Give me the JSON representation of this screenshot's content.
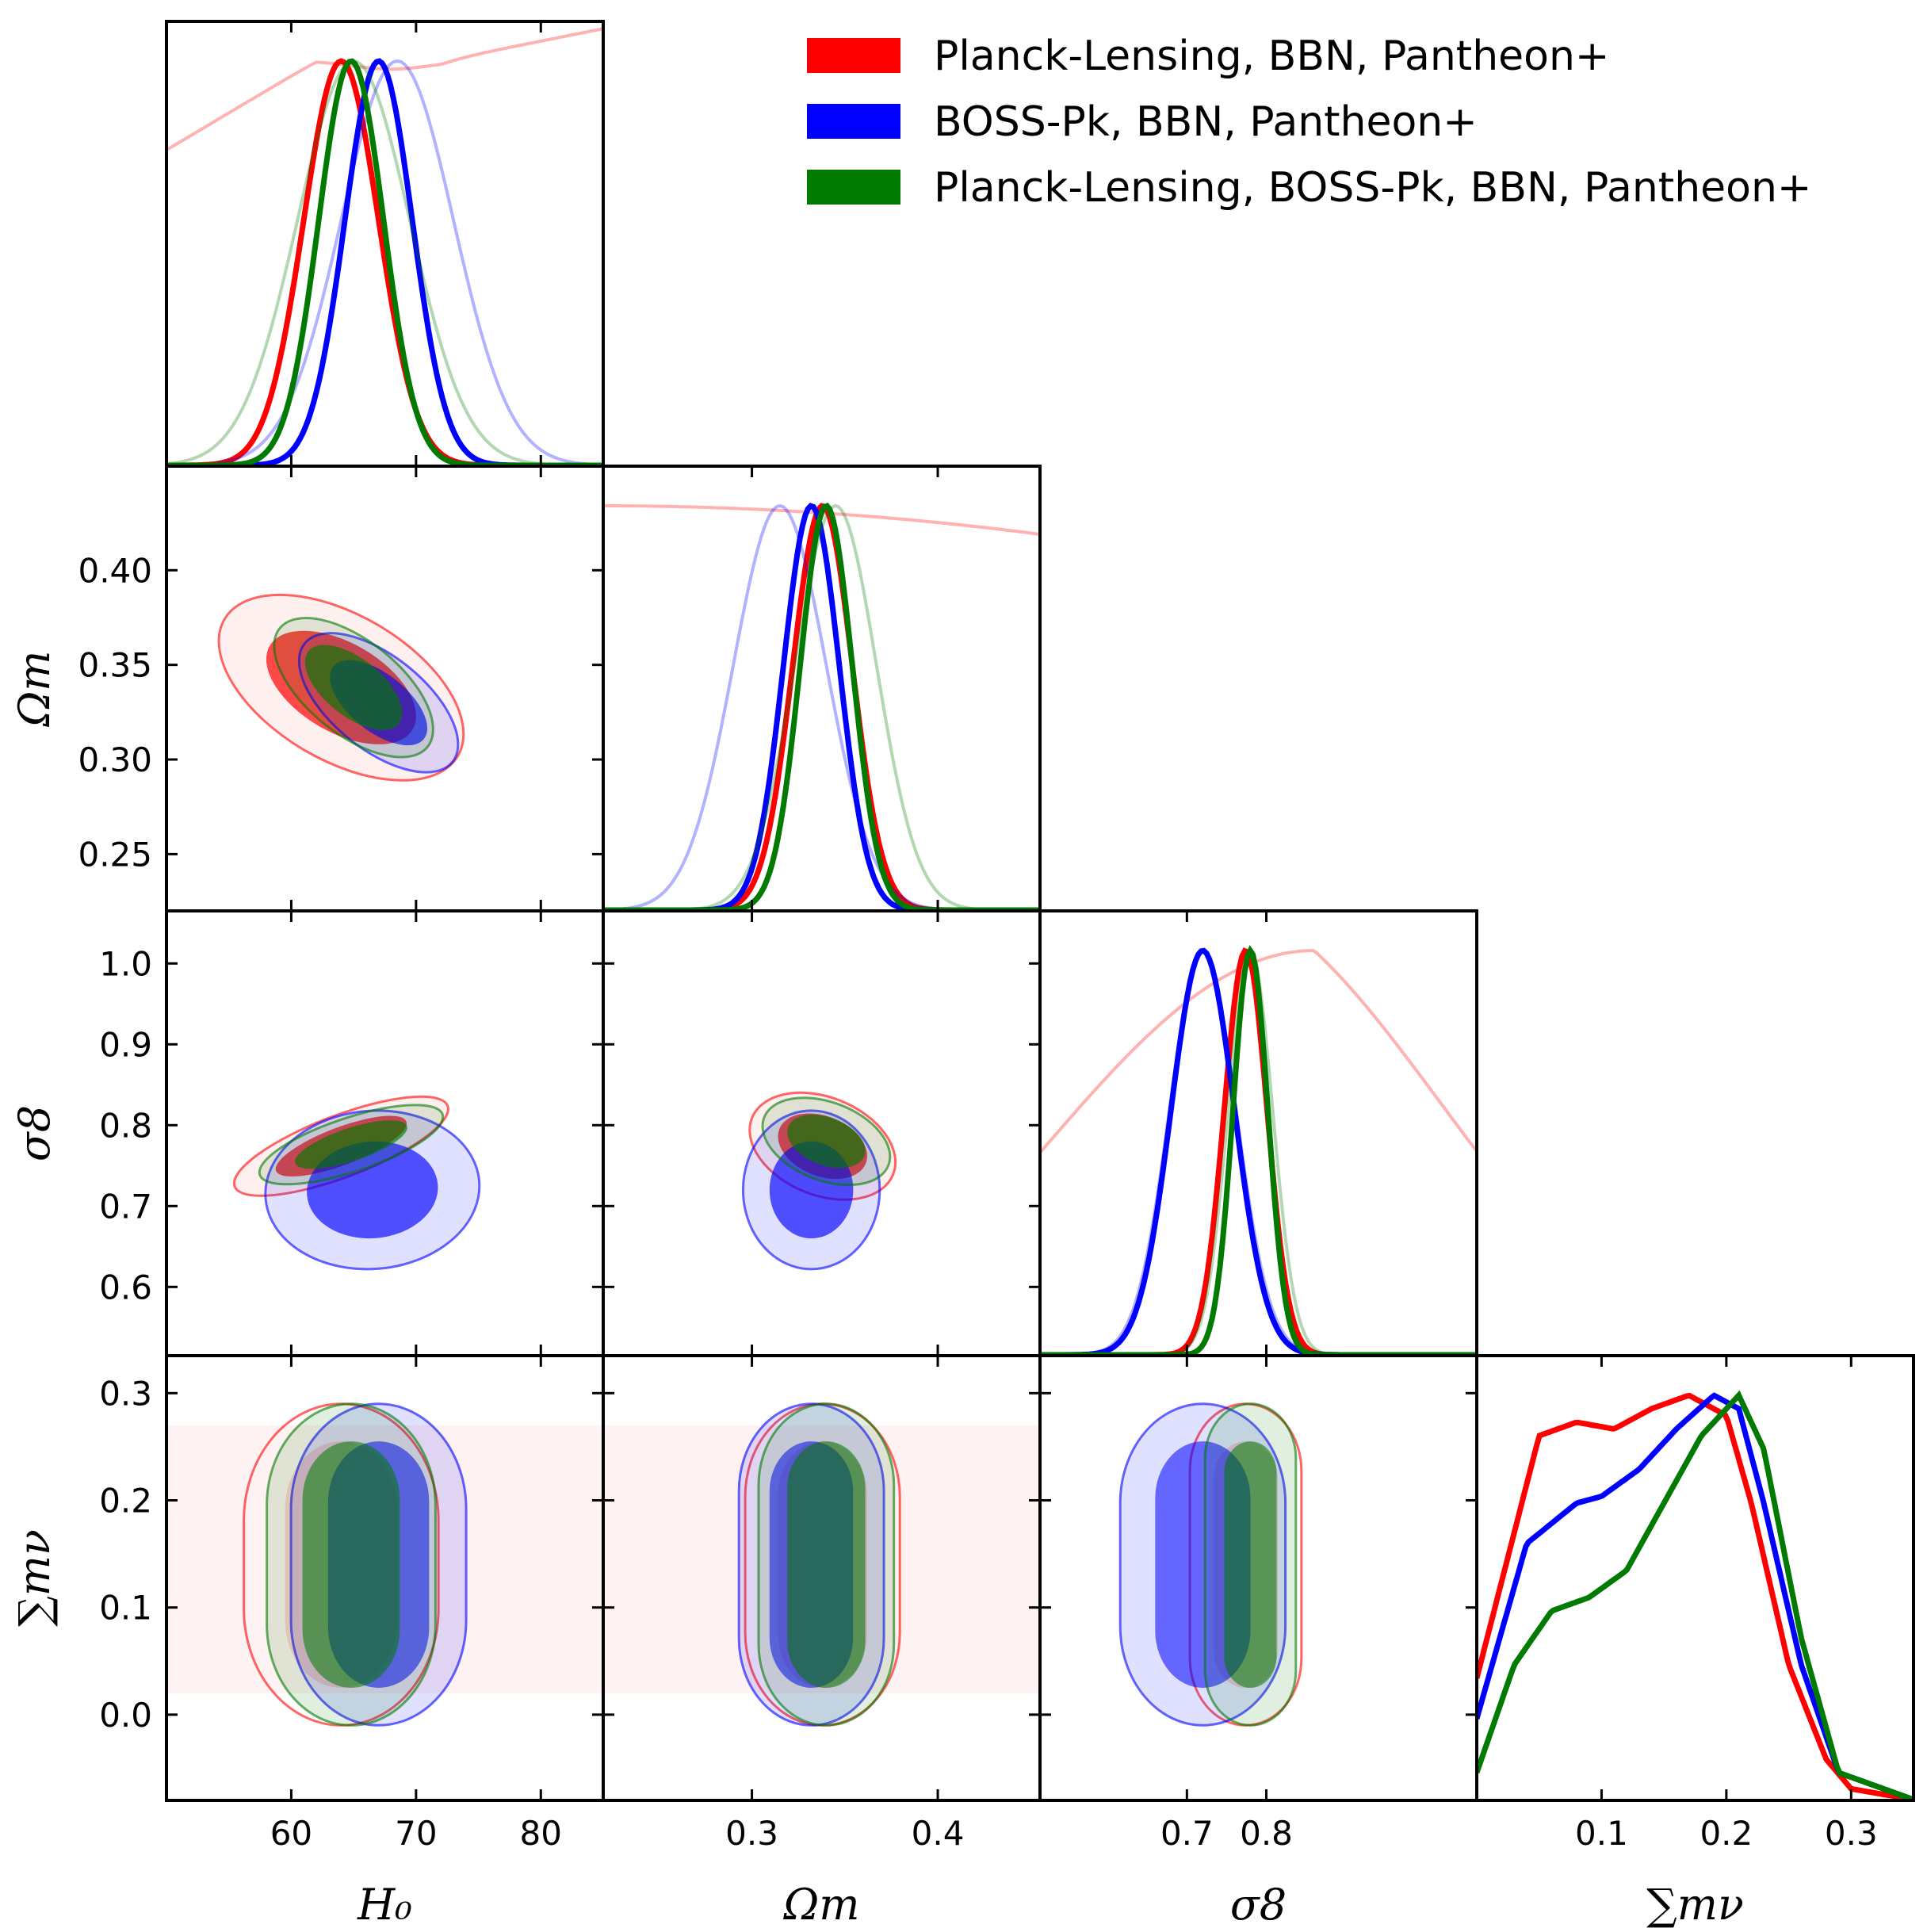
{
  "colors": {
    "red": "#ff0000",
    "blue": "#0000ff",
    "green": "#007a00",
    "frame": "#000000"
  },
  "legend": [
    {
      "label": "Planck-Lensing, BBN, Pantheon+",
      "color": "#ff0000"
    },
    {
      "label": "BOSS-Pk, BBN, Pantheon+",
      "color": "#0000ff"
    },
    {
      "label": "Planck-Lensing, BOSS-Pk, BBN, Pantheon+",
      "color": "#007a00"
    }
  ],
  "parameters": [
    {
      "key": "H0",
      "label": "H₀",
      "range": [
        50,
        85
      ],
      "ticks": [
        60,
        70,
        80
      ],
      "tick_labels": [
        "60",
        "70",
        "80"
      ]
    },
    {
      "key": "Om",
      "label": "Ωm",
      "range": [
        0.22,
        0.455
      ],
      "ticks": [
        0.25,
        0.3,
        0.35,
        0.4
      ],
      "tick_labels": [
        "0.25",
        "0.30",
        "0.35",
        "0.40"
      ],
      "x_ticks": [
        0.3,
        0.4
      ],
      "x_tick_labels": [
        "0.3",
        "0.4"
      ]
    },
    {
      "key": "s8",
      "label": "σ8",
      "range": [
        0.515,
        1.065
      ],
      "ticks": [
        0.6,
        0.7,
        0.8,
        0.9,
        1.0
      ],
      "tick_labels": [
        "0.6",
        "0.7",
        "0.8",
        "0.9",
        "1.0"
      ],
      "x_ticks": [
        0.7,
        0.8
      ],
      "x_tick_labels": [
        "0.7",
        "0.8"
      ]
    },
    {
      "key": "mnu",
      "label": "∑mν",
      "range": [
        0.0,
        0.35
      ],
      "y_range": [
        -0.08,
        0.335
      ],
      "ticks": [
        0.0,
        0.1,
        0.2,
        0.3
      ],
      "tick_labels": [
        "0.0",
        "0.1",
        "0.2",
        "0.3"
      ],
      "x_ticks": [
        0.1,
        0.2,
        0.3
      ],
      "x_tick_labels": [
        "0.1",
        "0.2",
        "0.3"
      ]
    }
  ],
  "chart_data": {
    "type": "triangle",
    "series": [
      {
        "name": "Planck-Lensing, BBN, Pantheon+",
        "color": "#ff0000",
        "marginals": {
          "H0": {
            "strong": {
              "mean": 64.0,
              "sd": 3.0
            },
            "weak": "flat-rising"
          },
          "Om": {
            "strong": {
              "mean": 0.338,
              "sd": 0.016
            },
            "weak": "decreasing"
          },
          "s8": {
            "strong": {
              "mean": 0.774,
              "sd": 0.027
            },
            "weak": "rising-peak-0.86"
          },
          "mnu": [
            [
              0.0,
              0.09
            ],
            [
              0.05,
              0.27
            ],
            [
              0.08,
              0.28
            ],
            [
              0.11,
              0.275
            ],
            [
              0.14,
              0.29
            ],
            [
              0.17,
              0.3
            ],
            [
              0.2,
              0.285
            ],
            [
              0.22,
              0.22
            ],
            [
              0.25,
              0.1
            ],
            [
              0.28,
              0.03
            ],
            [
              0.3,
              0.008
            ],
            [
              0.35,
              0.0
            ]
          ]
        },
        "contours": {
          "H0-Om": {
            "center": [
              64.0,
              0.338
            ],
            "sd": [
              4.0,
              0.02
            ],
            "rho": -0.5
          },
          "H0-s8": {
            "center": [
              64.0,
              0.774
            ],
            "sd": [
              3.5,
              0.025
            ],
            "rho": 0.75
          },
          "Om-s8": {
            "center": [
              0.338,
              0.774
            ],
            "sd": [
              0.016,
              0.027
            ],
            "rho": -0.3
          }
        }
      },
      {
        "name": "BOSS-Pk, BBN, Pantheon+",
        "color": "#0000ff",
        "marginals": {
          "H0": {
            "strong": {
              "mean": 67.0,
              "sd": 2.7
            },
            "weak": {
              "mean": 68.5,
              "sd": 4.5
            }
          },
          "Om": {
            "strong": {
              "mean": 0.332,
              "sd": 0.015
            },
            "weak": {
              "mean": 0.315,
              "sd": 0.025
            }
          },
          "s8": {
            "strong": {
              "mean": 0.72,
              "sd": 0.04
            },
            "weak": {
              "mean": 0.72,
              "sd": 0.042
            }
          },
          "mnu": [
            [
              0.0,
              0.06
            ],
            [
              0.04,
              0.19
            ],
            [
              0.08,
              0.22
            ],
            [
              0.1,
              0.225
            ],
            [
              0.13,
              0.245
            ],
            [
              0.16,
              0.275
            ],
            [
              0.19,
              0.3
            ],
            [
              0.21,
              0.29
            ],
            [
              0.23,
              0.22
            ],
            [
              0.26,
              0.1
            ],
            [
              0.29,
              0.02
            ],
            [
              0.35,
              0.0
            ]
          ]
        },
        "contours": {
          "H0-Om": {
            "center": [
              67.0,
              0.33
            ],
            "sd": [
              2.6,
              0.015
            ],
            "rho": -0.6
          },
          "H0-s8": {
            "center": [
              66.5,
              0.72
            ],
            "sd": [
              3.5,
              0.04
            ],
            "rho": 0.05
          },
          "Om-s8": {
            "center": [
              0.332,
              0.72
            ],
            "sd": [
              0.015,
              0.04
            ],
            "rho": 0.0
          }
        }
      },
      {
        "name": "Planck-Lensing, BOSS-Pk, BBN, Pantheon+",
        "color": "#007a00",
        "marginals": {
          "H0": {
            "strong": {
              "mean": 64.8,
              "sd": 2.6
            },
            "weak": {
              "mean": 65.0,
              "sd": 4.5
            }
          },
          "Om": {
            "strong": {
              "mean": 0.34,
              "sd": 0.014
            },
            "weak": {
              "mean": 0.345,
              "sd": 0.022
            }
          },
          "s8": {
            "strong": {
              "mean": 0.78,
              "sd": 0.022
            },
            "weak": {
              "mean": 0.78,
              "sd": 0.028
            }
          },
          "mnu": [
            [
              0.0,
              0.02
            ],
            [
              0.03,
              0.1
            ],
            [
              0.06,
              0.14
            ],
            [
              0.09,
              0.15
            ],
            [
              0.12,
              0.17
            ],
            [
              0.15,
              0.22
            ],
            [
              0.18,
              0.27
            ],
            [
              0.21,
              0.3
            ],
            [
              0.23,
              0.26
            ],
            [
              0.26,
              0.12
            ],
            [
              0.29,
              0.02
            ],
            [
              0.35,
              0.0
            ]
          ]
        },
        "contours": {
          "H0-Om": {
            "center": [
              65.0,
              0.338
            ],
            "sd": [
              2.6,
              0.015
            ],
            "rho": -0.6
          },
          "H0-s8": {
            "center": [
              64.8,
              0.776
            ],
            "sd": [
              3.0,
              0.02
            ],
            "rho": 0.7
          },
          "Om-s8": {
            "center": [
              0.34,
              0.78
            ],
            "sd": [
              0.014,
              0.022
            ],
            "rho": -0.35
          }
        }
      }
    ],
    "mnu_shape": {
      "center": 0.14,
      "half_height": 0.11
    }
  }
}
